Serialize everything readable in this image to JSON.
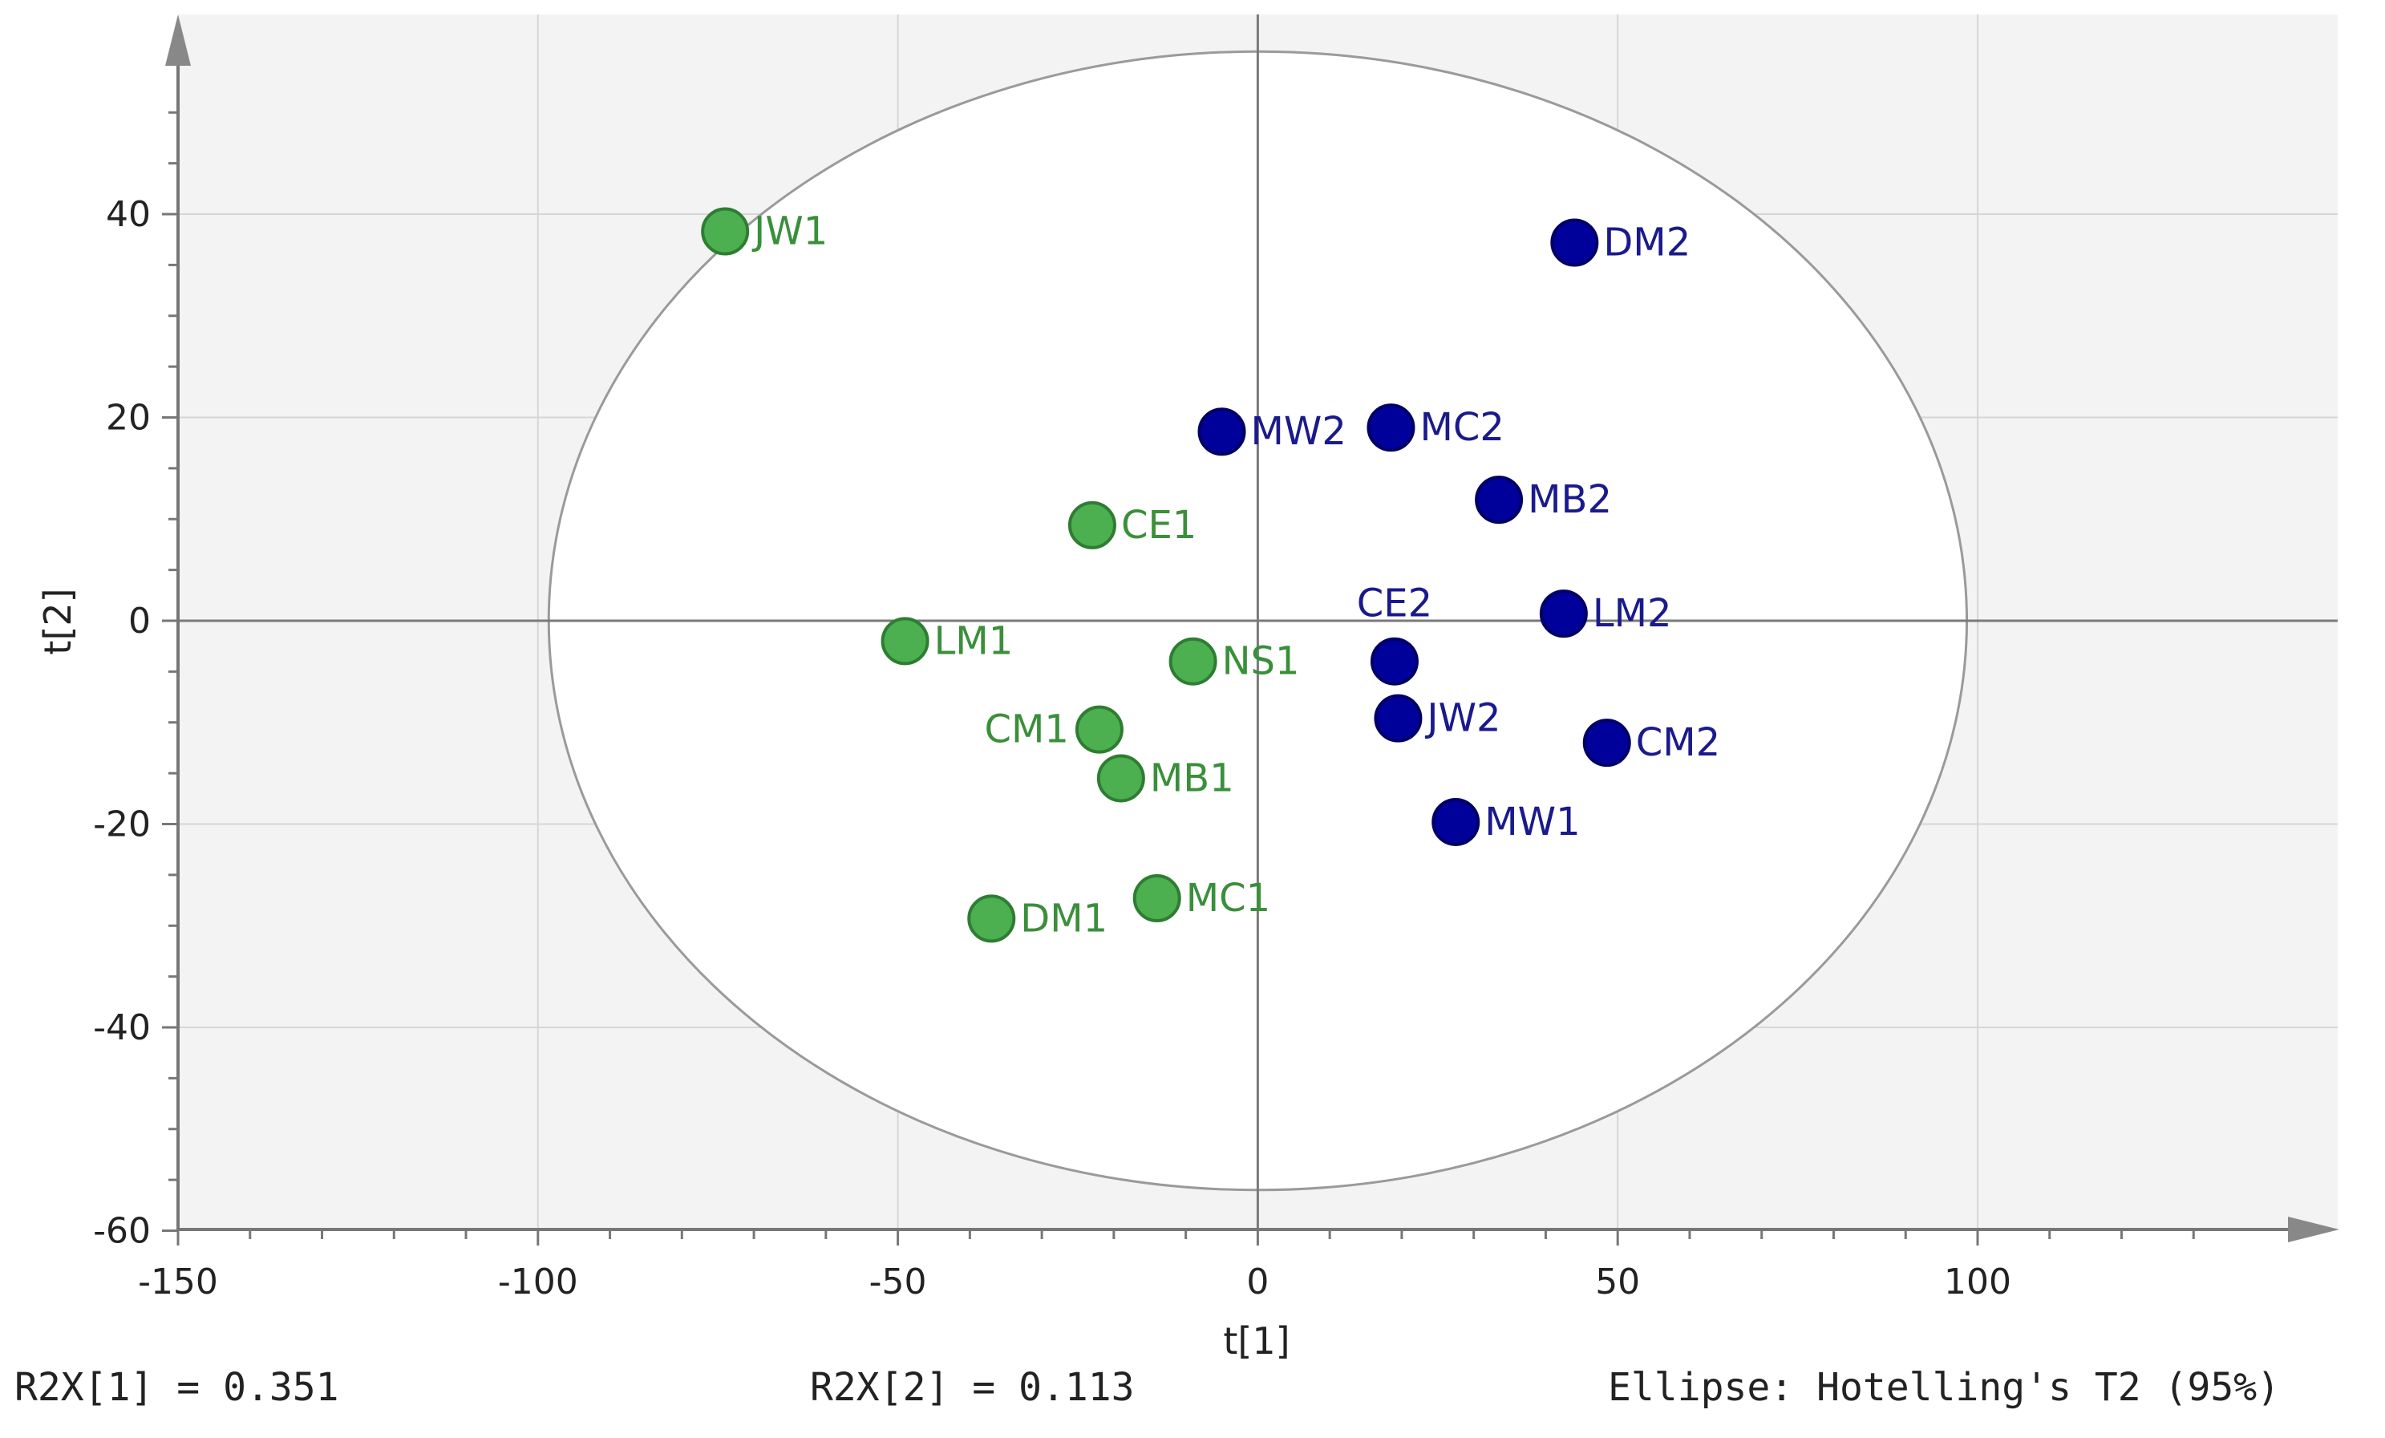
{
  "chart_data": {
    "type": "scatter",
    "xlabel": "t[1]",
    "ylabel": "t[2]",
    "xlim": [
      -150,
      140
    ],
    "ylim": [
      -60,
      55
    ],
    "xticks": [
      -150,
      -100,
      -50,
      0,
      50,
      100
    ],
    "yticks": [
      -60,
      -40,
      -20,
      0,
      20,
      40
    ],
    "grid": true,
    "ellipse": {
      "center": [
        0,
        0
      ],
      "rx": 98.5,
      "ry": 56
    },
    "colors": {
      "group1": "#4caf50",
      "group1_text": "#3a8f3a",
      "group2": "#00009a",
      "group2_text": "#1a1a8c"
    },
    "series": [
      {
        "points": [
          {
            "label": "JW1",
            "x": -74,
            "y": 38.3
          },
          {
            "label": "CE1",
            "x": -23,
            "y": 9.4
          },
          {
            "label": "LM1",
            "x": -49,
            "y": -2
          },
          {
            "label": "NS1",
            "x": -9,
            "y": -4
          },
          {
            "label": "CM1",
            "x": -22,
            "y": -10.7
          },
          {
            "label": "MB1",
            "x": -19,
            "y": -15.5
          },
          {
            "label": "DM1",
            "x": -37,
            "y": -29.3
          },
          {
            "label": "MC1",
            "x": -14,
            "y": -27.3
          }
        ]
      },
      {
        "points": [
          {
            "label": "DM2",
            "x": 44,
            "y": 37.2
          },
          {
            "label": "MW2",
            "x": -5,
            "y": 18.6
          },
          {
            "label": "MC2",
            "x": 18.5,
            "y": 19
          },
          {
            "label": "MB2",
            "x": 33.5,
            "y": 11.9
          },
          {
            "label": "CE2",
            "x": 19,
            "y": -4
          },
          {
            "label": "LM2",
            "x": 42.5,
            "y": 0.7
          },
          {
            "label": "JW2",
            "x": 19.5,
            "y": -9.6
          },
          {
            "label": "CM2",
            "x": 48.5,
            "y": -12
          },
          {
            "label": "MW1",
            "x": 27.5,
            "y": -19.8
          }
        ]
      }
    ]
  },
  "footer": {
    "r2x1": "R2X[1] = 0.351",
    "r2x2": "R2X[2] = 0.113",
    "ellipse_note": "Ellipse: Hotelling's T2 (95%)"
  }
}
